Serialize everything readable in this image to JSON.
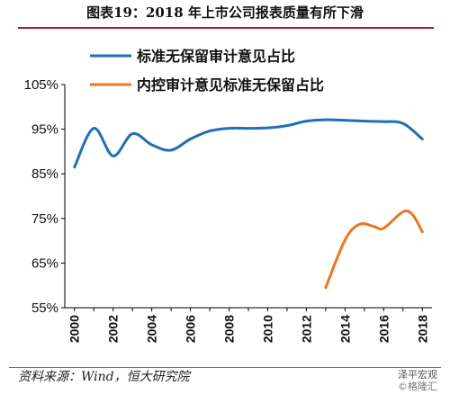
{
  "title": "图表19：2018 年上市公司报表质量有所下滑",
  "source_note": "资料来源：Wind，恒大研究院",
  "watermark": {
    "line1": "泽平宏观",
    "line2": "©格隆汇"
  },
  "colors": {
    "series1": "#1f6fb5",
    "series2": "#e87722",
    "title_rule": "#9a2a2a"
  },
  "chart_data": {
    "type": "line",
    "title": "",
    "xlabel": "",
    "ylabel": "",
    "xlim": [
      1999.5,
      2018.5
    ],
    "ylim": [
      55,
      105
    ],
    "y_ticks": [
      55,
      65,
      75,
      85,
      95,
      105
    ],
    "y_tick_labels": [
      "55%",
      "65%",
      "75%",
      "85%",
      "95%",
      "105%"
    ],
    "x_ticks": [
      2000,
      2002,
      2004,
      2006,
      2008,
      2010,
      2012,
      2014,
      2016,
      2018
    ],
    "x_tick_labels": [
      "2000",
      "2002",
      "2004",
      "2006",
      "2008",
      "2010",
      "2012",
      "2014",
      "2016",
      "2018"
    ],
    "grid": false,
    "legend_position": "top",
    "series": [
      {
        "name": "标准无保留审计意见占比",
        "color": "#1f6fb5",
        "points": [
          [
            2000,
            86.5
          ],
          [
            2001,
            95.2
          ],
          [
            2002,
            89.0
          ],
          [
            2003,
            94.0
          ],
          [
            2004,
            91.5
          ],
          [
            2005,
            90.3
          ],
          [
            2006,
            92.8
          ],
          [
            2007,
            94.6
          ],
          [
            2008,
            95.2
          ],
          [
            2009,
            95.2
          ],
          [
            2010,
            95.3
          ],
          [
            2011,
            95.8
          ],
          [
            2012,
            96.8
          ],
          [
            2013,
            97.1
          ],
          [
            2014,
            97.0
          ],
          [
            2015,
            96.8
          ],
          [
            2016,
            96.7
          ],
          [
            2017,
            96.3
          ],
          [
            2018,
            92.8
          ]
        ]
      },
      {
        "name": "内控审计意见标准无保留占比",
        "color": "#e87722",
        "points": [
          [
            2013,
            59.5
          ],
          [
            2014,
            70.2
          ],
          [
            2014.75,
            73.7
          ],
          [
            2015.5,
            73.2
          ],
          [
            2016,
            72.8
          ],
          [
            2017,
            76.5
          ],
          [
            2017.5,
            75.8
          ],
          [
            2018,
            72.0
          ]
        ]
      }
    ]
  }
}
